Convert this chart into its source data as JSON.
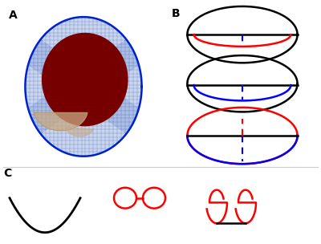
{
  "fig_width": 4.0,
  "fig_height": 3.04,
  "dpi": 100,
  "bg_color": "#ffffff",
  "label_A": "A",
  "label_B": "B",
  "label_C": "C"
}
